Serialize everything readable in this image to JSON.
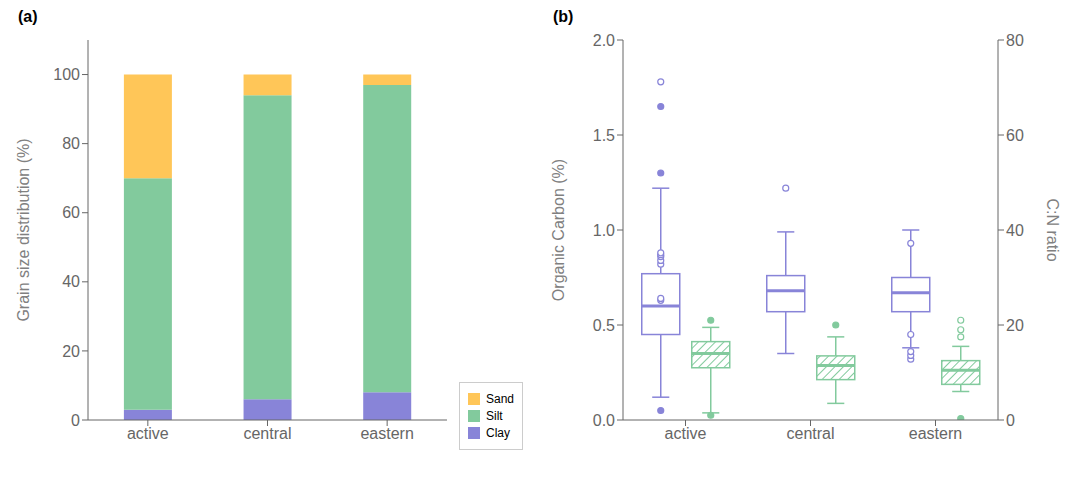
{
  "chart_data": [
    {
      "type": "bar",
      "stacked": true,
      "annotations": [
        "(a)"
      ],
      "categories": [
        "active",
        "central",
        "eastern"
      ],
      "series": [
        {
          "name": "Clay",
          "color": "#8884d8",
          "values": [
            3,
            6,
            8
          ]
        },
        {
          "name": "Silt",
          "color": "#82ca9d",
          "values": [
            67,
            88,
            89
          ]
        },
        {
          "name": "Sand",
          "color": "#ffc658",
          "values": [
            30,
            6,
            3
          ]
        }
      ],
      "ylabel": "Grain size distribution (%)",
      "ylim": [
        0,
        110
      ],
      "yticks": [
        0,
        20,
        40,
        60,
        80,
        100
      ],
      "legend": "lower right",
      "grid": false
    },
    {
      "type": "box",
      "annotations": [
        "(b)"
      ],
      "categories": [
        "active",
        "central",
        "eastern"
      ],
      "ylabel": "Organic Carbon (%)",
      "y2label": "C:N ratio",
      "ylim": [
        0,
        2.0
      ],
      "yticks": [
        {
          "value": 0,
          "label": "0.0"
        },
        0.5,
        {
          "value": 1,
          "label": "1.0"
        },
        1.5,
        {
          "value": 2,
          "label": "2.0"
        }
      ],
      "y2lim": [
        0,
        80
      ],
      "y2ticks": [
        0,
        20,
        40,
        60,
        80
      ],
      "grid": false,
      "series": [
        {
          "color": "#8884d8",
          "boxes": [
            {
              "q1": 0.45,
              "med": 0.6,
              "q3": 0.77,
              "whislo": 0.12,
              "whishi": 1.22,
              "fliers_open": [
                1.78,
                0.82,
                0.84,
                0.86,
                0.87,
                0.88,
                0.63,
                0.64
              ],
              "fliers_filled": [
                1.3,
                1.65,
                0.05
              ]
            },
            {
              "q1": 0.57,
              "med": 0.68,
              "q3": 0.76,
              "whislo": 0.35,
              "whishi": 0.99,
              "fliers_open": [
                1.22
              ],
              "fliers_filled": []
            },
            {
              "q1": 0.57,
              "med": 0.67,
              "q3": 0.75,
              "whislo": 0.38,
              "whishi": 1.0,
              "fliers_open": [
                0.93,
                0.32,
                0.34,
                0.36,
                0.45
              ],
              "fliers_filled": []
            }
          ]
        },
        {
          "axis": "y2",
          "color": "#82ca9d",
          "boxes": [
            {
              "q1": 11.0,
              "med": 14.0,
              "q3": 16.5,
              "whislo": 1.5,
              "whishi": 19.5,
              "fliers_open": [],
              "fliers_filled": [
                21.0,
                1.0
              ]
            },
            {
              "q1": 8.5,
              "med": 11.5,
              "q3": 13.5,
              "whislo": 3.5,
              "whishi": 17.5,
              "fliers_open": [],
              "fliers_filled": [
                20.0
              ]
            },
            {
              "q1": 7.5,
              "med": 10.5,
              "q3": 12.5,
              "whislo": 6.0,
              "whishi": 15.5,
              "fliers_open": [
                21.0,
                17.5,
                19.0
              ],
              "fliers_filled": [
                0.3
              ]
            }
          ]
        }
      ]
    }
  ]
}
